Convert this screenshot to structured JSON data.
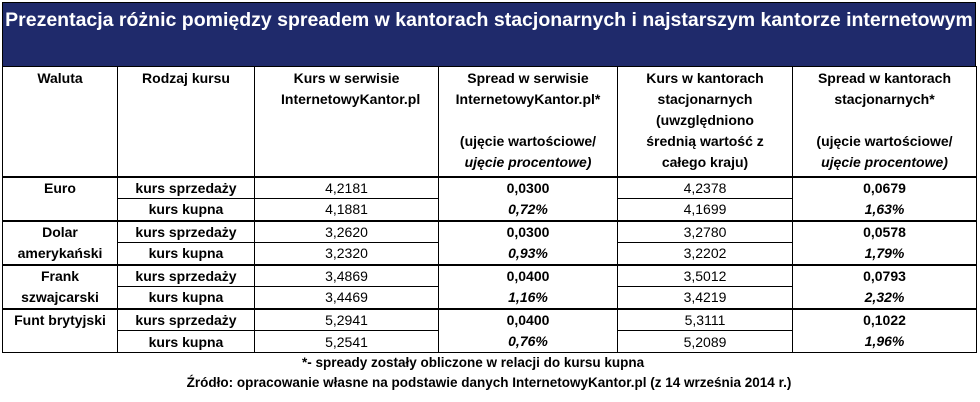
{
  "title": "Prezentacja różnic pomiędzy spreadem w kantorach stacjonarnych i najstarszym kantorze internetowym",
  "headers": {
    "waluta": "Waluta",
    "rodzaj": "Rodzaj kursu",
    "kurs_serwis": "Kurs w serwisie InternetowyKantor.pl",
    "spread_serwis_main": "Spread w serwisie InternetowyKantor.pl*",
    "spread_serwis_sub1": "(ujęcie wartościowe/",
    "spread_serwis_sub2": "ujęcie procentowe)",
    "kurs_kantory": "Kurs w kantorach stacjonarnych (uwzględniono średnią wartość z całego kraju)",
    "spread_kantory_main": "Spread w kantorach stacjonarnych*",
    "spread_kantory_sub1": "(ujęcie wartościowe/",
    "spread_kantory_sub2": "ujęcie procentowe)"
  },
  "rows": [
    {
      "currency": "Euro",
      "sell_label": "kurs sprzedaży",
      "buy_label": "kurs kupna",
      "sell_online": "4,2181",
      "buy_online": "4,1881",
      "spread_online_value": "0,0300",
      "spread_online_pct": "0,72%",
      "sell_office": "4,2378",
      "buy_office": "4,1699",
      "spread_office_value": "0,0679",
      "spread_office_pct": "1,63%"
    },
    {
      "currency": "Dolar amerykański",
      "sell_label": "kurs sprzedaży",
      "buy_label": "kurs kupna",
      "sell_online": "3,2620",
      "buy_online": "3,2320",
      "spread_online_value": "0,0300",
      "spread_online_pct": "0,93%",
      "sell_office": "3,2780",
      "buy_office": "3,2202",
      "spread_office_value": "0,0578",
      "spread_office_pct": "1,79%"
    },
    {
      "currency": "Frank szwajcarski",
      "sell_label": "kurs sprzedaży",
      "buy_label": "kurs kupna",
      "sell_online": "3,4869",
      "buy_online": "3,4469",
      "spread_online_value": "0,0400",
      "spread_online_pct": "1,16%",
      "sell_office": "3,5012",
      "buy_office": "3,4219",
      "spread_office_value": "0,0793",
      "spread_office_pct": "2,32%"
    },
    {
      "currency": "Funt brytyjski",
      "sell_label": "kurs sprzedaży",
      "buy_label": "kurs kupna",
      "sell_online": "5,2941",
      "buy_online": "5,2541",
      "spread_online_value": "0,0400",
      "spread_online_pct": "0,76%",
      "sell_office": "5,3111",
      "buy_office": "5,2089",
      "spread_office_value": "0,1022",
      "spread_office_pct": "1,96%"
    }
  ],
  "footnote": "*- spready zostały obliczone w relacji do kursu kupna",
  "source": "Źródło: opracowanie własne na podstawie danych InternetowyKantor.pl (z 14 września 2014 r.)"
}
